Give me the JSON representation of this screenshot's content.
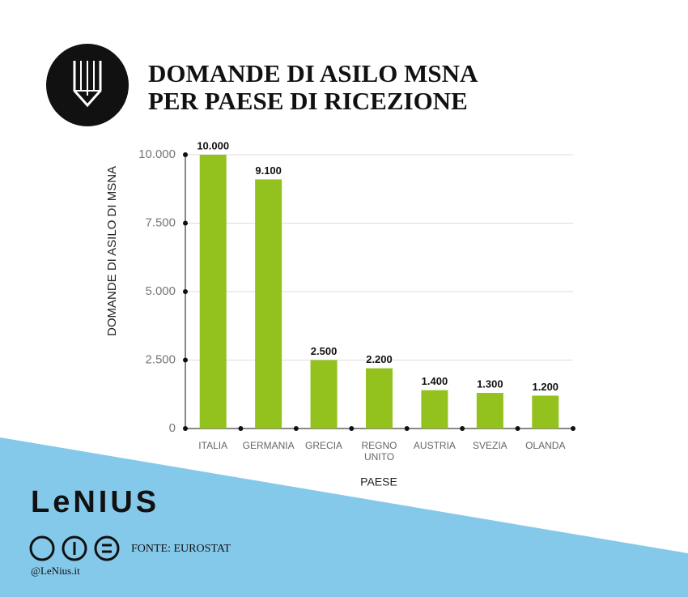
{
  "chart_data": {
    "type": "bar",
    "title": "DOMANDE DI ASILO MSNA PER PAESE DI RICEZIONE",
    "categories": [
      "ITALIA",
      "GERMANIA",
      "GRECIA",
      "REGNO UNITO",
      "AUSTRIA",
      "SVEZIA",
      "OLANDA"
    ],
    "values": [
      10000,
      9100,
      2500,
      2200,
      1400,
      1300,
      1200
    ],
    "value_labels": [
      "10.000",
      "9.100",
      "2.500",
      "2.200",
      "1.400",
      "1.300",
      "1.200"
    ],
    "color": "#93c11e",
    "ylim": [
      0,
      10000
    ],
    "yticks": [
      0,
      {
        "value": 2500,
        "label": "2.500"
      },
      {
        "value": 5000,
        "label": "5.000"
      },
      {
        "value": 7500,
        "label": "7.500"
      },
      {
        "value": 10000,
        "label": "10.000"
      }
    ],
    "grid": true,
    "y_label": "DOMANDE DI ASILO DI MSNA",
    "x_label": "PAESE"
  },
  "brand": "LeNIUS",
  "source": "FONTE: EUROSTAT",
  "handle": "@LeNius.it"
}
